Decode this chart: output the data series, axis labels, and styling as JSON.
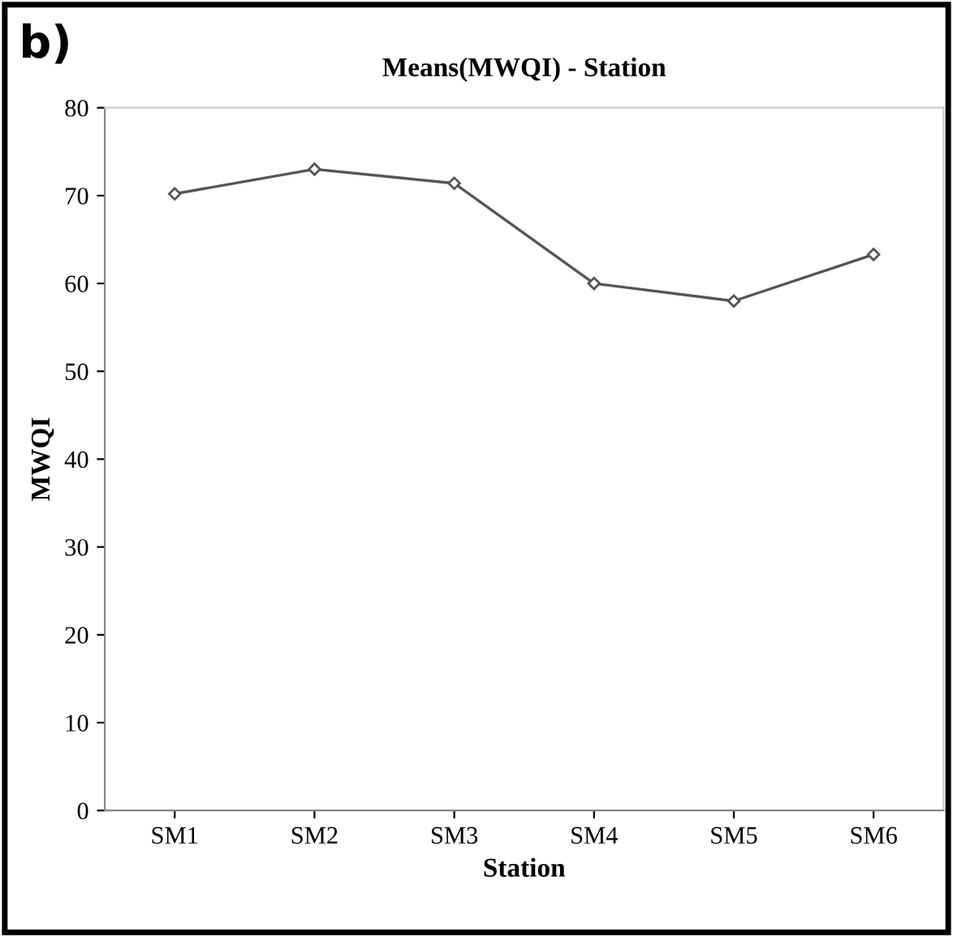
{
  "chart_data": {
    "type": "line",
    "title": "Means(MWQI) - Station",
    "xlabel": "Station",
    "ylabel": "MWQI",
    "annotations": [
      "b)"
    ],
    "categories": [
      "SM1",
      "SM2",
      "SM3",
      "SM4",
      "SM5",
      "SM6"
    ],
    "series": [
      {
        "color": "#555555",
        "values": [
          70.2,
          73.0,
          71.4,
          60.0,
          58.0,
          63.3
        ]
      }
    ],
    "ylim": [
      0,
      80
    ],
    "yticks": [
      0,
      10,
      20,
      30,
      40,
      50,
      60,
      70,
      80
    ],
    "grid": false,
    "marker": "diamond",
    "line_style": "solid"
  }
}
